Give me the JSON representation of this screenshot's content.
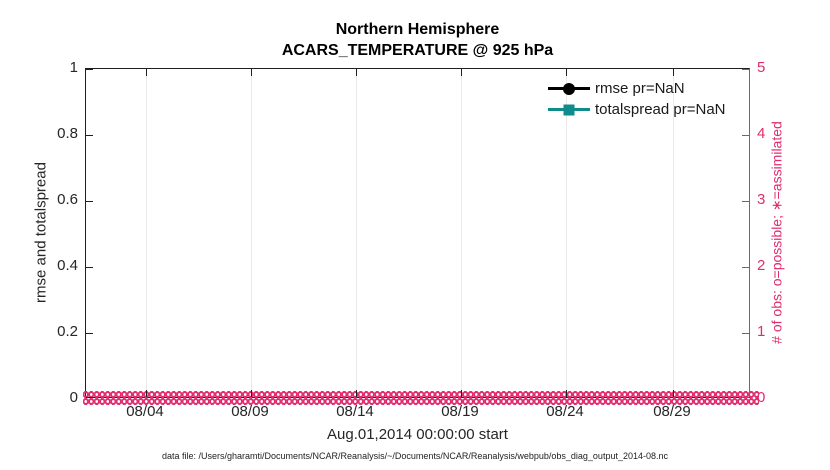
{
  "figure": {
    "title_line1": "Northern Hemisphere",
    "title_line2": "ACARS_TEMPERATURE @ 925 hPa",
    "xlabel": "Aug.01,2014 00:00:00 start",
    "ylabel_left": "rmse and totalspread",
    "ylabel_right": "# of obs: o=possible; ∗=assimilated",
    "footer": "data file: /Users/gharamti/Documents/NCAR/Reanalysis/~/Documents/NCAR/Reanalysis/webpub/obs_diag_output_2014-08.nc"
  },
  "legend": {
    "entries": [
      {
        "label": "rmse pr=NaN",
        "color": "#000000",
        "marker": "filled-circle"
      },
      {
        "label": "totalspread pr=NaN",
        "color": "#108c8c",
        "marker": "filled-square"
      }
    ],
    "box": false,
    "position": "top-right-inside"
  },
  "axes": {
    "x_ticks": [
      "08/04",
      "08/09",
      "08/14",
      "08/19",
      "08/24",
      "08/29"
    ],
    "y_left_ticks": [
      "0",
      "0.2",
      "0.4",
      "0.6",
      "0.8",
      "1"
    ],
    "y_right_ticks": [
      "0",
      "1",
      "2",
      "3",
      "4",
      "5"
    ]
  },
  "colors": {
    "accent_pink": "#e02d6e",
    "teal": "#108c8c",
    "axis_dark": "#1f1f1f",
    "background": "#ffffff"
  },
  "chart_data": {
    "type": "line",
    "title": [
      "Northern Hemisphere",
      "ACARS_TEMPERATURE @ 925 hPa"
    ],
    "xlabel": "Aug.01,2014 00:00:00 start",
    "ylabel_left": "rmse and totalspread",
    "ylabel_right": "# of obs: o=possible; ∗=assimilated",
    "x_axis": {
      "range": "Aug 01 2014 00:00 to ~Sep 01 2014",
      "tick_labels": [
        "08/04",
        "08/09",
        "08/14",
        "08/19",
        "08/24",
        "08/29"
      ]
    },
    "ylim_left": [
      0,
      1
    ],
    "yticks_left": [
      0,
      0.2,
      0.4,
      0.6,
      0.8,
      1
    ],
    "ylim_right": [
      0,
      5
    ],
    "yticks_right": [
      0,
      1,
      2,
      3,
      4,
      5
    ],
    "grid": "faint vertical gridlines at x ticks only",
    "legend_position": "top-right inside, no box",
    "series": [
      {
        "name": "rmse pr=NaN",
        "axis": "left",
        "color": "#000000",
        "marker": "circle",
        "values": "NaN — no curve drawn"
      },
      {
        "name": "totalspread pr=NaN",
        "axis": "left",
        "color": "#108c8c",
        "marker": "square",
        "values": "NaN — no curve drawn"
      },
      {
        "name": "possible observations (o)",
        "axis": "right",
        "color": "#e02d6e",
        "marker": "o",
        "constant_value": 0,
        "note": "dense row of open circle markers at y=0 spanning entire x range"
      },
      {
        "name": "assimilated observations (∗)",
        "axis": "right",
        "color": "#e02d6e",
        "marker": "∗",
        "constant_value": 0,
        "note": "overlapping markers at y=0 spanning entire x range"
      }
    ]
  }
}
